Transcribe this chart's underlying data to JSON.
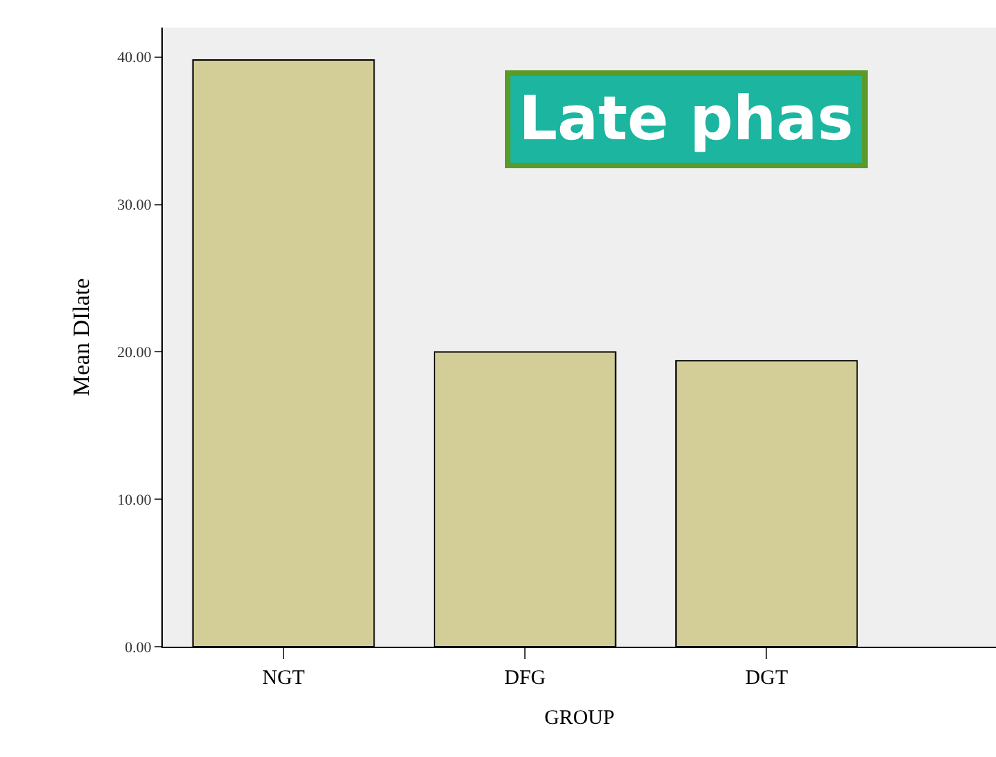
{
  "chart_data": {
    "type": "bar",
    "xlabel": "GROUP",
    "ylabel": "Mean DIlate",
    "categories": [
      "NGT",
      "DFG",
      "DGT"
    ],
    "values": [
      39.8,
      20.0,
      19.4
    ],
    "color": "#d3ce98",
    "ylim": [
      0,
      42
    ],
    "yticks": [
      {
        "value": 0,
        "label": "0.00"
      },
      {
        "value": 10,
        "label": "10.00"
      },
      {
        "value": 20,
        "label": "20.00"
      },
      {
        "value": 30,
        "label": "30.00"
      },
      {
        "value": 40,
        "label": "40.00"
      }
    ],
    "annotations": [
      "Late phas"
    ]
  }
}
